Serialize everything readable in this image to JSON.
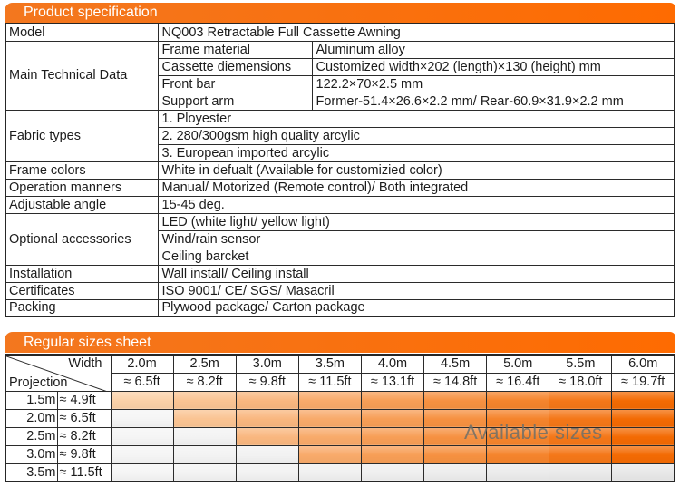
{
  "colors": {
    "accent_left": "#f3771f",
    "accent_right": "#fe6b01",
    "available_start": "#fbd1a8",
    "available_end": "#f36a03",
    "unavailable_start": "#f5f5f5",
    "unavailable_end": "#e8e8e8",
    "border": "#2b2b2b",
    "overlay_text": "#6f6f68"
  },
  "spec": {
    "header": "Product specification",
    "groups": [
      {
        "label": "Model",
        "items": [
          {
            "value": "NQ003 Retractable Full Cassette Awning"
          }
        ]
      },
      {
        "label": "Main Technical Data",
        "items": [
          {
            "sub": "Frame material",
            "value": "Aluminum alloy"
          },
          {
            "sub": "Cassette diemensions",
            "value": "Customized width×202 (length)×130 (height) mm"
          },
          {
            "sub": "Front bar",
            "value": "122.2×70×2.5 mm"
          },
          {
            "sub": "Support arm",
            "value": "Former-51.4×26.6×2.2 mm/ Rear-60.9×31.9×2.2 mm"
          }
        ]
      },
      {
        "label": "Fabric types",
        "items": [
          {
            "value": "1. Ployester"
          },
          {
            "value": "2. 280/300gsm high quality arcylic"
          },
          {
            "value": "3. European imported arcylic"
          }
        ]
      },
      {
        "label": "Frame colors",
        "items": [
          {
            "value": "White in defualt (Available for customizied color)"
          }
        ]
      },
      {
        "label": "Operation manners",
        "items": [
          {
            "value": "Manual/ Motorized (Remote control)/ Both integrated"
          }
        ]
      },
      {
        "label": "Adjustable angle",
        "items": [
          {
            "value": "15-45 deg."
          }
        ]
      },
      {
        "label": "Optional accessories",
        "items": [
          {
            "value": "LED (white light/ yellow light)"
          },
          {
            "value": "Wind/rain sensor"
          },
          {
            "value": "Ceiling barcket"
          }
        ]
      },
      {
        "label": "Installation",
        "items": [
          {
            "value": "Wall install/ Ceiling install"
          }
        ]
      },
      {
        "label": "Certificates",
        "items": [
          {
            "value": "ISO 9001/ CE/ SGS/ Masacril"
          }
        ]
      },
      {
        "label": "Packing",
        "items": [
          {
            "value": "Plywood package/ Carton package"
          }
        ]
      }
    ]
  },
  "sizes": {
    "header": "Regular sizes sheet",
    "corner": {
      "top": "Width",
      "bottom": "Projection"
    },
    "columns": [
      {
        "m": "2.0m",
        "ft": "≈ 6.5ft"
      },
      {
        "m": "2.5m",
        "ft": "≈ 8.2ft"
      },
      {
        "m": "3.0m",
        "ft": "≈ 9.8ft"
      },
      {
        "m": "3.5m",
        "ft": "≈ 11.5ft"
      },
      {
        "m": "4.0m",
        "ft": "≈ 13.1ft"
      },
      {
        "m": "4.5m",
        "ft": "≈ 14.8ft"
      },
      {
        "m": "5.0m",
        "ft": "≈ 16.4ft"
      },
      {
        "m": "5.5m",
        "ft": "≈ 18.0ft"
      },
      {
        "m": "6.0m",
        "ft": "≈ 19.7ft"
      }
    ],
    "rows": [
      {
        "m": "1.5m",
        "ft": "≈ 4.9ft",
        "available_from": 0
      },
      {
        "m": "2.0m",
        "ft": "≈ 6.5ft",
        "available_from": 1
      },
      {
        "m": "2.5m",
        "ft": "≈ 8.2ft",
        "available_from": 2
      },
      {
        "m": "3.0m",
        "ft": "≈ 9.8ft",
        "available_from": 3
      },
      {
        "m": "3.5m",
        "ft": "≈ 11.5ft",
        "available_from": null
      }
    ],
    "overlay": "Available sizes"
  }
}
